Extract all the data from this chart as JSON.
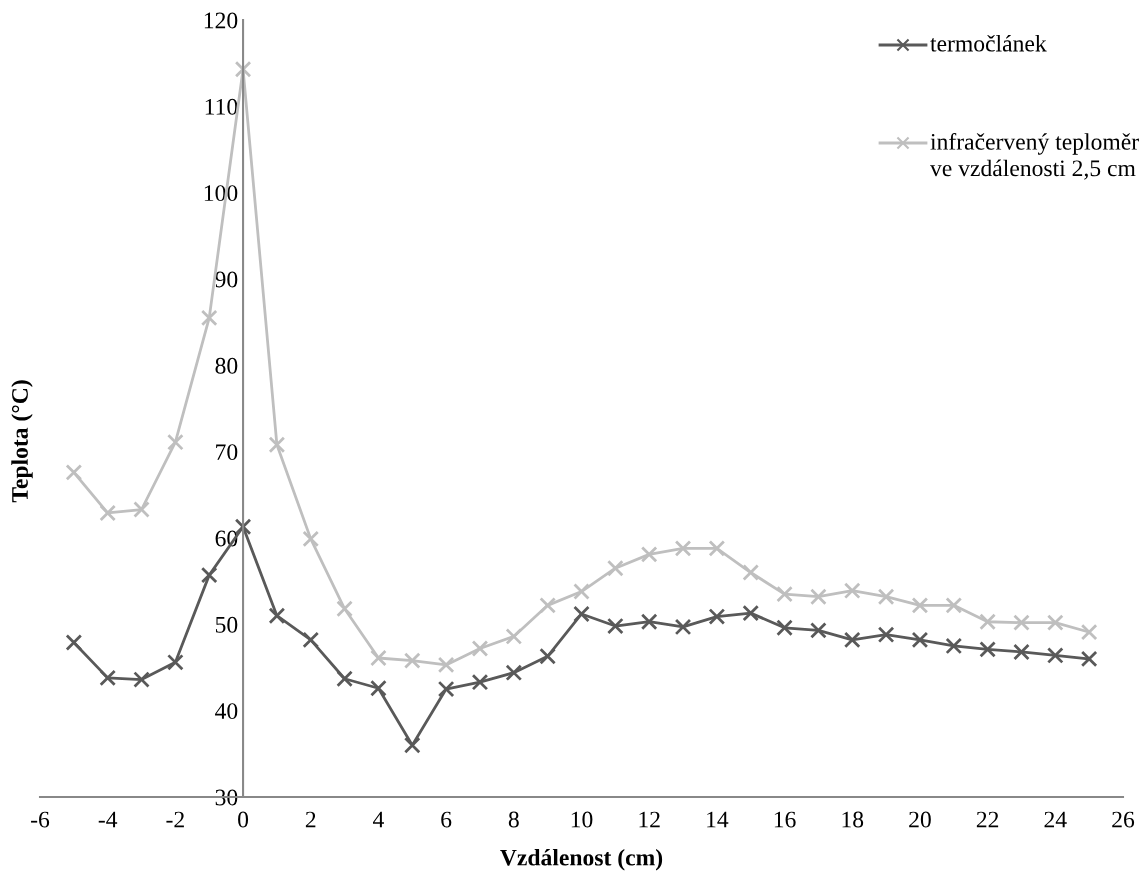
{
  "chart_data": {
    "type": "line",
    "xlabel": "Vzdálenost (cm)",
    "ylabel": "Teplota (°C)",
    "x": [
      -5,
      -4,
      -3,
      -2,
      -1,
      0,
      1,
      2,
      3,
      4,
      5,
      6,
      7,
      8,
      9,
      10,
      11,
      12,
      13,
      14,
      15,
      16,
      17,
      18,
      19,
      20,
      21,
      22,
      23,
      24,
      25
    ],
    "series": [
      {
        "name": "termočlánek",
        "color": "#595959",
        "values": [
          47.9,
          43.8,
          43.6,
          45.6,
          55.7,
          61.3,
          51.0,
          48.2,
          43.7,
          42.6,
          36.0,
          42.5,
          43.3,
          44.4,
          46.3,
          51.2,
          49.8,
          50.3,
          49.7,
          50.9,
          51.3,
          49.6,
          49.3,
          48.2,
          48.8,
          48.2,
          47.5,
          47.1,
          46.8,
          46.4,
          46.0
        ]
      },
      {
        "name": "infračervený teploměr ve vzdálenosti 2,5 cm",
        "color": "#bfbfbf",
        "values": [
          67.6,
          62.9,
          63.3,
          71.1,
          85.5,
          114.3,
          70.8,
          59.9,
          51.8,
          46.1,
          45.8,
          45.3,
          47.2,
          48.6,
          52.2,
          53.8,
          56.5,
          58.1,
          58.8,
          58.8,
          56.0,
          53.5,
          53.2,
          53.9,
          53.2,
          52.2,
          52.2,
          50.3,
          50.2,
          50.2,
          49.1
        ]
      }
    ],
    "xlim": [
      -6,
      26
    ],
    "xticks": [
      -6,
      -4,
      -2,
      0,
      2,
      4,
      6,
      8,
      10,
      12,
      14,
      16,
      18,
      20,
      22,
      24,
      26
    ],
    "ylim": [
      30,
      120
    ],
    "yticks": [
      30,
      40,
      50,
      60,
      70,
      80,
      90,
      100,
      110,
      120
    ],
    "marker": "cross",
    "line_style": "solid",
    "grid": false,
    "legend": "top right"
  }
}
